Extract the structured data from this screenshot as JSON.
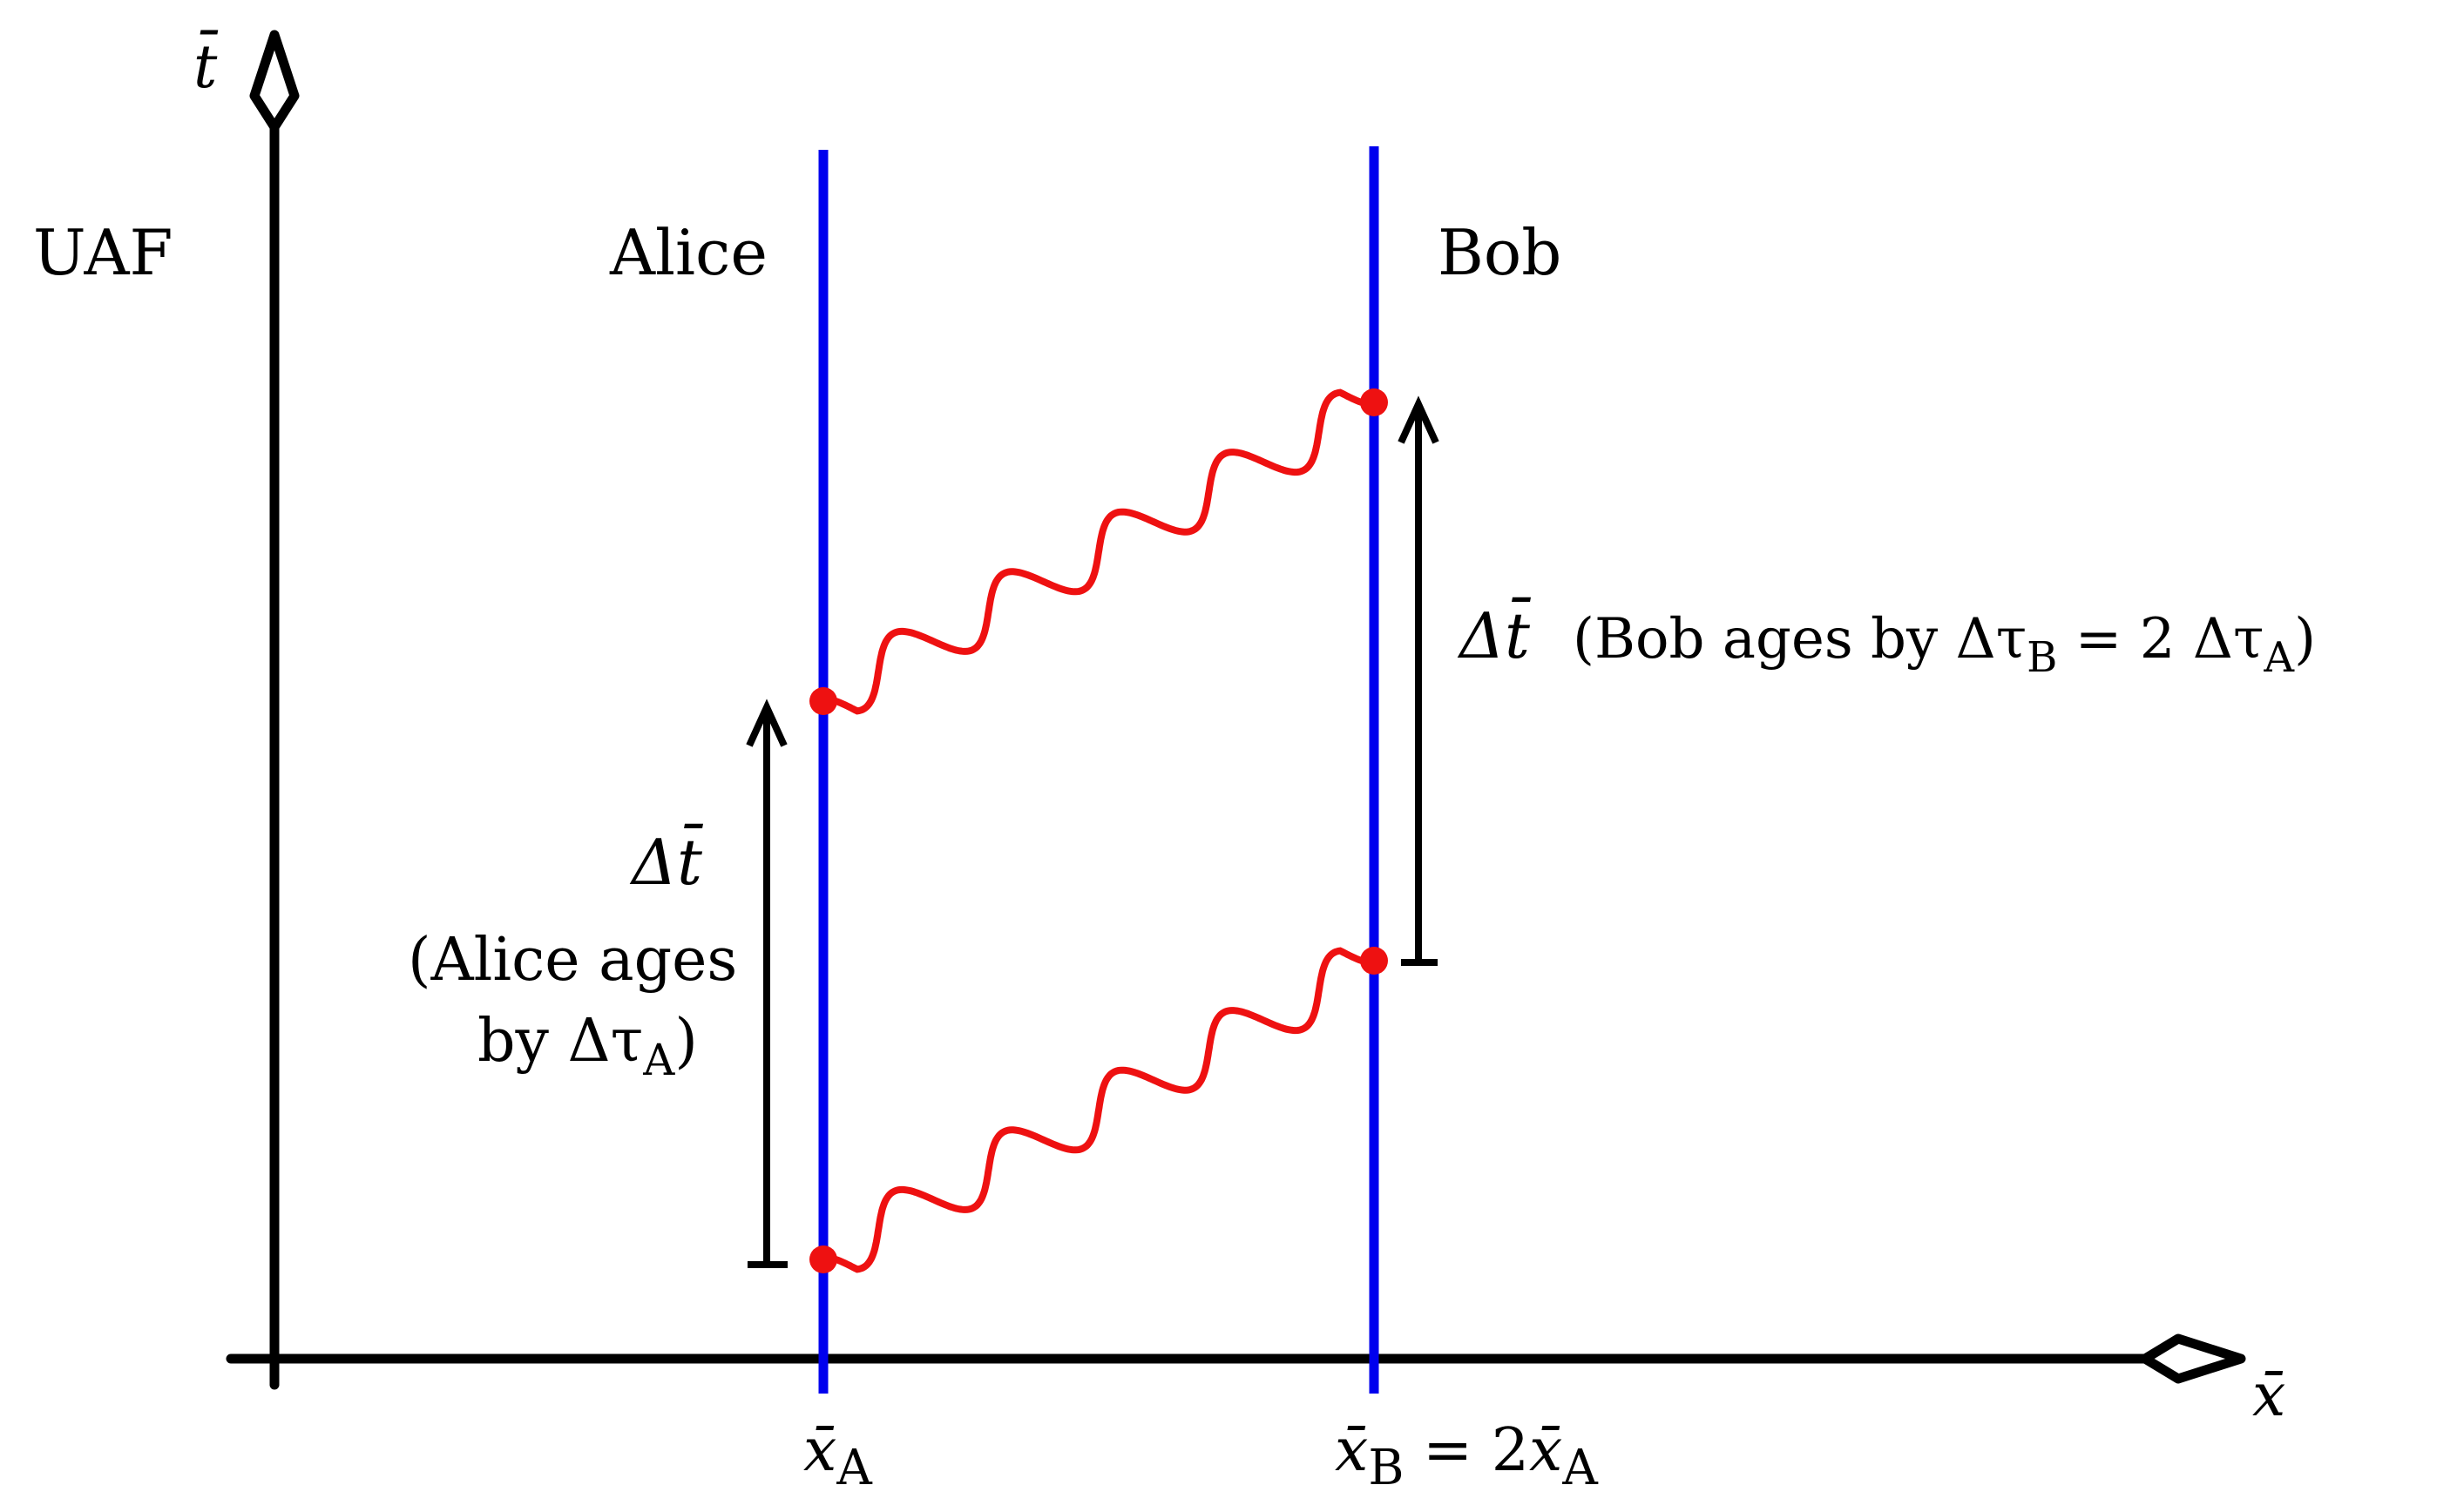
{
  "frame_label": "UAF",
  "axes": {
    "t_symbol": "t̄",
    "x_symbol": "x̄"
  },
  "observers": {
    "alice": {
      "name": "Alice"
    },
    "bob": {
      "name": "Bob"
    }
  },
  "positions": {
    "xA": {
      "sym": "x̄",
      "sub": "A"
    },
    "xB": {
      "sym": "x̄",
      "sub": "B",
      "eq": " = 2",
      "sym2": "x̄",
      "sub2": "A"
    }
  },
  "annotations": {
    "alice_interval": {
      "delta_t": "Δt̄",
      "line1": "(Alice ages",
      "line2_prefix": "by Δτ",
      "line2_sub": "A",
      "line2_suffix": ")"
    },
    "bob_interval": {
      "delta_t": "Δt̄",
      "text_prefix": "(Bob ages by Δτ",
      "sub_b": "B",
      "text_mid": " = 2 Δτ",
      "sub_a": "A",
      "text_suffix": ")"
    }
  },
  "colors": {
    "axes": "#000000",
    "worldline": "#0000ee",
    "signal": "#ee1111",
    "event": "#ee1111",
    "interval_arrow": "#000000"
  }
}
